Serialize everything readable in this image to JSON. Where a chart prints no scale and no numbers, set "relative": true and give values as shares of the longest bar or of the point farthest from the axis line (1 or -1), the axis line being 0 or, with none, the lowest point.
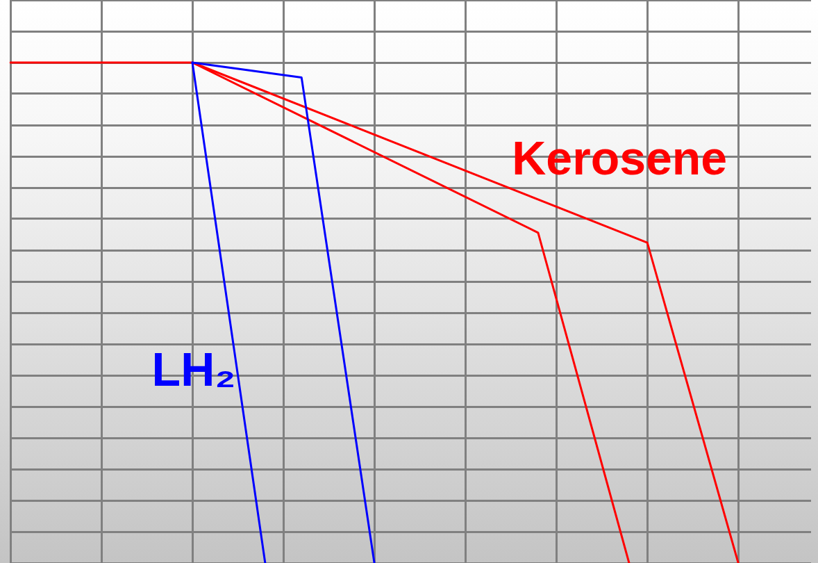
{
  "chart_data": {
    "type": "line",
    "relative": true,
    "grid": true,
    "legend": false,
    "marker": "none",
    "line_style": "solid",
    "categories": [
      null,
      null,
      null,
      null,
      null,
      null,
      null,
      null,
      null,
      null,
      null,
      null,
      null,
      null,
      null,
      null,
      null,
      null,
      null,
      null,
      null,
      null,
      null,
      null,
      null,
      null,
      null,
      null,
      null,
      null,
      null,
      null,
      null,
      null,
      null,
      null,
      null,
      null,
      null,
      null,
      null,
      null,
      null,
      null,
      null
    ],
    "series": [
      {
        "color": "#0000ff",
        "values": [
          null,
          null,
          null,
          null,
          null,
          null,
          null,
          null,
          null,
          null,
          1,
          null,
          null,
          null,
          0,
          null,
          null,
          null,
          null,
          null,
          null,
          null,
          null,
          null,
          null,
          null,
          null,
          null,
          null,
          null,
          null,
          null,
          null,
          null,
          null,
          null,
          null,
          null,
          null,
          null,
          null,
          null,
          null,
          null,
          null
        ],
        "name": "LH₂"
      },
      {
        "color": "#0000ff",
        "values": [
          null,
          null,
          null,
          null,
          null,
          null,
          null,
          null,
          null,
          null,
          1,
          null,
          null,
          null,
          null,
          null,
          0.97,
          null,
          null,
          null,
          0,
          null,
          null,
          null,
          null,
          null,
          null,
          null,
          null,
          null,
          null,
          null,
          null,
          null,
          null,
          null,
          null,
          null,
          null,
          null,
          null,
          null,
          null,
          null,
          null
        ]
      },
      {
        "color": "#ff0000",
        "values": [
          1,
          null,
          null,
          null,
          null,
          null,
          null,
          null,
          null,
          null,
          1,
          null,
          null,
          null,
          null,
          null,
          null,
          null,
          null,
          null,
          null,
          null,
          null,
          null,
          null,
          null,
          null,
          null,
          null,
          0.66,
          null,
          null,
          null,
          null,
          0,
          null,
          null,
          null,
          null,
          null,
          null,
          null,
          null,
          null,
          null
        ]
      },
      {
        "color": "#ff0000",
        "values": [
          null,
          null,
          null,
          null,
          null,
          null,
          null,
          null,
          null,
          null,
          1,
          null,
          null,
          null,
          null,
          null,
          null,
          null,
          null,
          null,
          null,
          null,
          null,
          null,
          null,
          null,
          null,
          null,
          null,
          null,
          null,
          null,
          null,
          null,
          null,
          0.64,
          null,
          null,
          null,
          null,
          0,
          null,
          null,
          null,
          null
        ],
        "name": "Kerosene"
      }
    ]
  }
}
